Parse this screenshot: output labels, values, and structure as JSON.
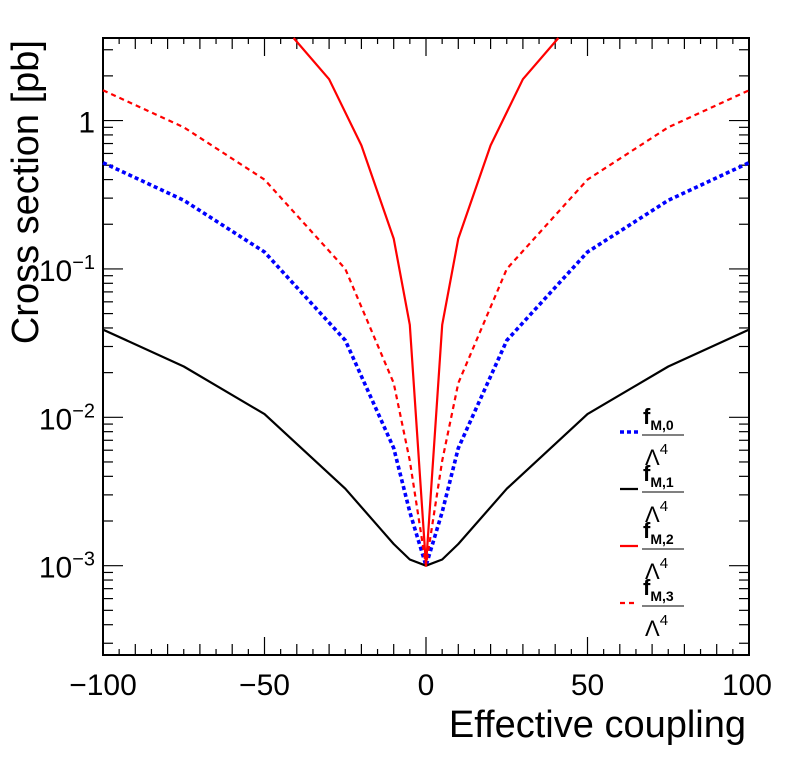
{
  "chart_data": {
    "type": "line",
    "title": "",
    "xlabel": "Effective coupling",
    "ylabel": "Cross section [pb]",
    "xlim": [
      -100,
      100
    ],
    "ylim": [
      0.00025,
      3.6
    ],
    "yscale": "log",
    "grid": false,
    "legend_position": "bottom-right",
    "x_ticks": [
      {
        "value": -100,
        "label": "−100"
      },
      {
        "value": -50,
        "label": "−50"
      },
      {
        "value": 0,
        "label": "0"
      },
      {
        "value": 50,
        "label": "50"
      },
      {
        "value": 100,
        "label": "100"
      }
    ],
    "y_ticks": [
      {
        "value": 0.001,
        "base": "10",
        "exp": "−3"
      },
      {
        "value": 0.01,
        "base": "10",
        "exp": "−2"
      },
      {
        "value": 0.1,
        "base": "10",
        "exp": "−1"
      },
      {
        "value": 1,
        "base": "1",
        "exp": ""
      }
    ],
    "sigma0": 0.001,
    "series": [
      {
        "name": "fM0",
        "legend_num": "f",
        "legend_sub": "M,0",
        "legend_den": "Λ",
        "legend_den_exp": "4",
        "color": "#0000ff",
        "style": "dotted",
        "x": [
          -100,
          -75,
          -50,
          -25,
          -10,
          -5,
          0,
          5,
          10,
          25,
          50,
          75,
          100
        ],
        "y": [
          0.52,
          0.29,
          0.13,
          0.033,
          0.0062,
          0.0023,
          0.001,
          0.0023,
          0.0062,
          0.033,
          0.13,
          0.29,
          0.52
        ]
      },
      {
        "name": "fM1",
        "legend_num": "f",
        "legend_sub": "M,1",
        "legend_den": "Λ",
        "legend_den_exp": "4",
        "color": "#000000",
        "style": "solid",
        "x": [
          -100,
          -75,
          -50,
          -25,
          -10,
          -5,
          0,
          5,
          10,
          25,
          50,
          75,
          100
        ],
        "y": [
          0.039,
          0.022,
          0.0105,
          0.0033,
          0.0014,
          0.0011,
          0.001,
          0.0011,
          0.0014,
          0.0033,
          0.0105,
          0.022,
          0.039
        ]
      },
      {
        "name": "fM2",
        "legend_num": "f",
        "legend_sub": "M,2",
        "legend_den": "Λ",
        "legend_den_exp": "4",
        "color": "#ff0000",
        "style": "solid",
        "x": [
          -41,
          -30,
          -20,
          -10,
          -5,
          0,
          5,
          10,
          20,
          30,
          41
        ],
        "y": [
          3.6,
          1.9,
          0.68,
          0.16,
          0.042,
          0.001,
          0.042,
          0.16,
          0.68,
          1.9,
          3.6
        ]
      },
      {
        "name": "fM3",
        "legend_num": "f",
        "legend_sub": "M,3",
        "legend_den": "Λ",
        "legend_den_exp": "4",
        "color": "#ff0000",
        "style": "dashed",
        "x": [
          -100,
          -75,
          -50,
          -25,
          -10,
          -5,
          0,
          5,
          10,
          25,
          50,
          75,
          100
        ],
        "y": [
          1.6,
          0.9,
          0.4,
          0.1,
          0.017,
          0.0051,
          0.001,
          0.0051,
          0.017,
          0.1,
          0.4,
          0.9,
          1.6
        ]
      }
    ]
  }
}
